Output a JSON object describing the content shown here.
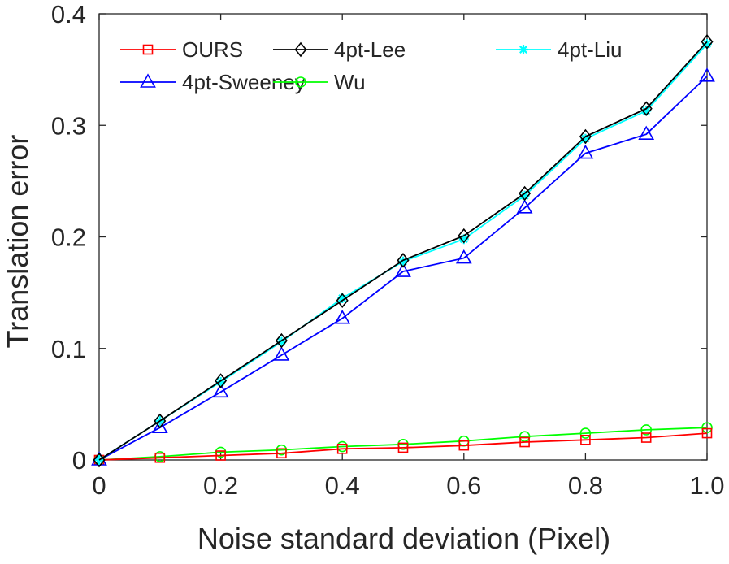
{
  "chart_data": {
    "type": "line",
    "title": "",
    "xlabel": "Noise standard deviation (Pixel)",
    "ylabel": "Translation error",
    "xlim": [
      0,
      1.0
    ],
    "ylim": [
      0,
      0.4
    ],
    "xticks": [
      0,
      0.2,
      0.4,
      0.6,
      0.8,
      1.0
    ],
    "xtick_labels": [
      "0",
      "0.2",
      "0.4",
      "0.6",
      "0.8",
      "1.0"
    ],
    "yticks": [
      0,
      0.1,
      0.2,
      0.3,
      0.4
    ],
    "ytick_labels": [
      "0",
      "0.1",
      "0.2",
      "0.3",
      "0.4"
    ],
    "grid": false,
    "legend_position": "top-left",
    "x": [
      0,
      0.1,
      0.2,
      0.3,
      0.4,
      0.5,
      0.6,
      0.7,
      0.8,
      0.9,
      1.0
    ],
    "series": [
      {
        "name": "OURS",
        "color": "#ff0000",
        "marker": "square",
        "values": [
          0,
          0.002,
          0.004,
          0.006,
          0.01,
          0.011,
          0.013,
          0.016,
          0.018,
          0.02,
          0.024
        ]
      },
      {
        "name": "4pt-Sweeney",
        "color": "#0000ff",
        "marker": "triangle",
        "values": [
          0,
          0.029,
          0.061,
          0.094,
          0.127,
          0.169,
          0.181,
          0.226,
          0.275,
          0.292,
          0.344
        ]
      },
      {
        "name": "4pt-Lee",
        "color": "#000000",
        "marker": "diamond",
        "values": [
          0,
          0.035,
          0.071,
          0.107,
          0.143,
          0.179,
          0.201,
          0.239,
          0.29,
          0.315,
          0.375
        ]
      },
      {
        "name": "Wu",
        "color": "#00ff00",
        "marker": "circle",
        "values": [
          0,
          0.003,
          0.007,
          0.009,
          0.012,
          0.014,
          0.017,
          0.021,
          0.024,
          0.027,
          0.029
        ]
      },
      {
        "name": "4pt-Liu",
        "color": "#00ffff",
        "marker": "asterisk",
        "values": [
          0,
          0.035,
          0.07,
          0.106,
          0.145,
          0.178,
          0.198,
          0.237,
          0.288,
          0.313,
          0.373
        ]
      }
    ]
  }
}
